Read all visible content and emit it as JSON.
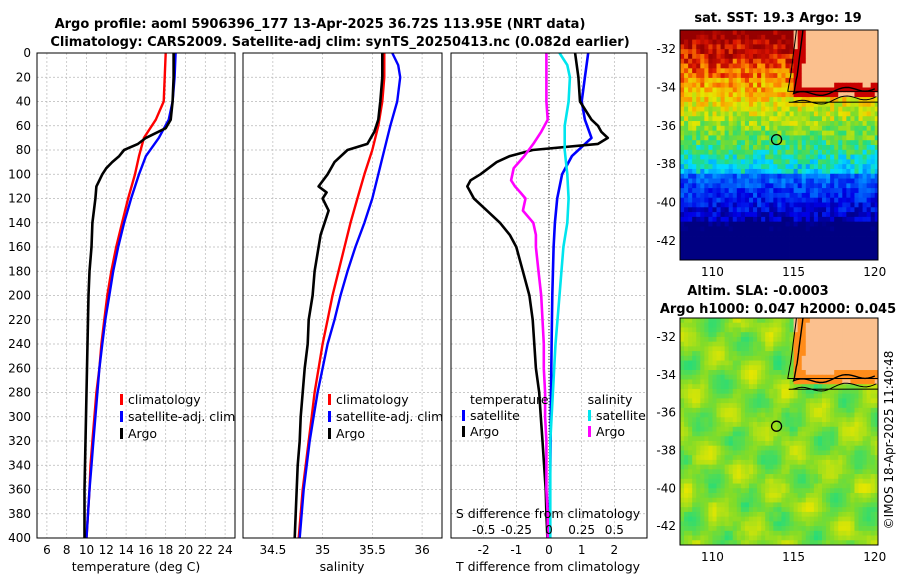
{
  "figure": {
    "title_line1": "Argo profile: aoml 5906396_177 13-Apr-2025 36.72S 113.95E (NRT data)",
    "title_line2": "Climatology: CARS2009. Satellite-adj clim: synTS_20250413.nc (0.082d earlier)",
    "credit": "©IMOS 18-Apr-2025 11:40:48"
  },
  "colors": {
    "climatology": "#ff0000",
    "satellite": "#0000ff",
    "argo": "#000000",
    "satellite_salinity": "#00e5ee",
    "argo_salinity": "#ff00ff"
  },
  "chart_data": [
    {
      "type": "line",
      "panel": "temperature",
      "xlabel": "temperature (deg C)",
      "ylabel": "",
      "xlim": [
        5,
        25
      ],
      "ylim": [
        400,
        0
      ],
      "xticks": [
        6,
        8,
        10,
        12,
        14,
        16,
        18,
        20,
        22,
        24
      ],
      "yticks": [
        0,
        20,
        40,
        60,
        80,
        100,
        120,
        140,
        160,
        180,
        200,
        220,
        240,
        260,
        280,
        300,
        320,
        340,
        360,
        380,
        400
      ],
      "grid": true,
      "legend": [
        "climatology",
        "satellite-adj. clim",
        "Argo"
      ],
      "legend_position": "lower-right",
      "series": [
        {
          "name": "climatology",
          "color": "#ff0000",
          "depth": [
            0,
            20,
            40,
            55,
            70,
            85,
            100,
            120,
            140,
            160,
            180,
            200,
            220,
            240,
            260,
            280,
            300,
            320,
            340,
            360,
            380,
            400
          ],
          "values": [
            18.0,
            17.9,
            17.8,
            17.0,
            15.8,
            15.3,
            14.9,
            14.2,
            13.6,
            13.0,
            12.5,
            12.1,
            11.8,
            11.5,
            11.3,
            11.0,
            10.8,
            10.6,
            10.4,
            10.3,
            10.15,
            10.0
          ]
        },
        {
          "name": "satellite-adj. clim",
          "color": "#0000ff",
          "depth": [
            0,
            20,
            40,
            55,
            70,
            85,
            100,
            120,
            140,
            160,
            180,
            200,
            220,
            240,
            260,
            280,
            300,
            320,
            340,
            360,
            380,
            400
          ],
          "values": [
            19.0,
            18.9,
            18.7,
            18.3,
            17.3,
            16.0,
            15.3,
            14.5,
            13.8,
            13.2,
            12.7,
            12.3,
            11.9,
            11.6,
            11.3,
            11.1,
            10.9,
            10.7,
            10.5,
            10.3,
            10.15,
            10.0
          ]
        },
        {
          "name": "Argo",
          "color": "#000000",
          "depth": [
            0,
            20,
            40,
            55,
            62,
            70,
            75,
            80,
            85,
            90,
            95,
            100,
            105,
            110,
            120,
            140,
            160,
            180,
            200,
            220,
            240,
            260,
            280,
            300,
            320,
            340,
            360,
            380,
            400
          ],
          "values": [
            18.8,
            18.8,
            18.7,
            18.5,
            18.0,
            16.0,
            15.2,
            13.8,
            13.3,
            12.6,
            12.0,
            11.6,
            11.3,
            11.0,
            10.9,
            10.6,
            10.5,
            10.3,
            10.2,
            10.15,
            10.1,
            10.05,
            10.0,
            9.95,
            9.9,
            9.85,
            9.8,
            9.8,
            9.8
          ]
        }
      ]
    },
    {
      "type": "line",
      "panel": "salinity",
      "xlabel": "salinity",
      "ylabel": "",
      "xlim": [
        34.2,
        36.2
      ],
      "ylim": [
        400,
        0
      ],
      "xticks": [
        34.5,
        35,
        35.5,
        36
      ],
      "xtick_labels": [
        "34.5",
        "35",
        "35.5",
        "36"
      ],
      "grid": true,
      "legend": [
        "climatology",
        "satellite-adj. clim",
        "Argo"
      ],
      "legend_position": "lower-right",
      "series": [
        {
          "name": "climatology",
          "color": "#ff0000",
          "depth": [
            0,
            20,
            40,
            60,
            80,
            100,
            120,
            140,
            160,
            180,
            200,
            220,
            240,
            260,
            280,
            300,
            320,
            340,
            360,
            380,
            400
          ],
          "values": [
            35.62,
            35.62,
            35.6,
            35.56,
            35.5,
            35.42,
            35.35,
            35.28,
            35.22,
            35.16,
            35.1,
            35.05,
            35.0,
            34.96,
            34.92,
            34.89,
            34.86,
            34.83,
            34.8,
            34.78,
            34.76
          ]
        },
        {
          "name": "satellite-adj. clim",
          "color": "#0000ff",
          "depth": [
            0,
            10,
            20,
            40,
            60,
            80,
            100,
            120,
            140,
            160,
            180,
            200,
            220,
            240,
            260,
            280,
            300,
            320,
            340,
            360,
            380,
            400
          ],
          "values": [
            35.7,
            35.76,
            35.78,
            35.75,
            35.68,
            35.62,
            35.56,
            35.5,
            35.42,
            35.33,
            35.25,
            35.18,
            35.12,
            35.05,
            35.0,
            34.95,
            34.91,
            34.87,
            34.84,
            34.81,
            34.79,
            34.77
          ]
        },
        {
          "name": "Argo",
          "color": "#000000",
          "depth": [
            0,
            20,
            40,
            55,
            65,
            75,
            80,
            90,
            100,
            110,
            115,
            120,
            130,
            140,
            150,
            160,
            180,
            200,
            220,
            240,
            260,
            280,
            300,
            320,
            340,
            360,
            380,
            400
          ],
          "values": [
            35.6,
            35.6,
            35.58,
            35.56,
            35.52,
            35.45,
            35.25,
            35.12,
            35.05,
            34.96,
            35.04,
            35.0,
            35.06,
            35.02,
            34.98,
            34.96,
            34.92,
            34.9,
            34.86,
            34.85,
            34.82,
            34.8,
            34.78,
            34.77,
            34.75,
            34.74,
            34.73,
            34.72
          ]
        }
      ]
    },
    {
      "type": "line",
      "panel": "difference",
      "xlabel": "T difference from climatology",
      "xlabel_top": "S difference from climatology",
      "ylabel": "",
      "xlim": [
        -3,
        3
      ],
      "ylim": [
        400,
        0
      ],
      "xticks": [
        -2,
        -1,
        0,
        1,
        2
      ],
      "xtick_labels": [
        "-2",
        "-1",
        "0",
        "1",
        "2"
      ],
      "xticks_top": [
        -0.5,
        -0.25,
        0,
        0.25,
        0.5
      ],
      "xtick_labels_top": [
        "-0.5",
        "-0.25",
        "0",
        "0.25",
        "0.5"
      ],
      "s_scale": 4,
      "grid": true,
      "legend_groups": [
        {
          "title": "temperature",
          "entries": [
            "satellite",
            "Argo"
          ]
        },
        {
          "title": "salinity",
          "entries": [
            "satellite",
            "Argo"
          ]
        }
      ],
      "legend_position": "lower-right",
      "series": [
        {
          "name": "temperature satellite",
          "color": "#0000ff",
          "depth": [
            0,
            20,
            40,
            55,
            70,
            85,
            100,
            120,
            140,
            160,
            200,
            240,
            280,
            320,
            360,
            400
          ],
          "values": [
            1.2,
            1.1,
            1.0,
            1.1,
            1.3,
            0.7,
            0.4,
            0.25,
            0.18,
            0.14,
            0.1,
            0.08,
            0.06,
            0.05,
            0.03,
            0.02
          ]
        },
        {
          "name": "temperature Argo",
          "color": "#000000",
          "depth": [
            0,
            20,
            40,
            55,
            60,
            65,
            70,
            75,
            80,
            85,
            90,
            100,
            105,
            110,
            120,
            130,
            140,
            150,
            160,
            180,
            200,
            220,
            240,
            260,
            280,
            300,
            320,
            340,
            360,
            380,
            400
          ],
          "values": [
            0.8,
            0.9,
            0.95,
            1.3,
            1.5,
            1.6,
            1.8,
            1.5,
            -0.5,
            -1.2,
            -1.6,
            -2.1,
            -2.4,
            -2.5,
            -2.3,
            -1.9,
            -1.5,
            -1.2,
            -1.0,
            -0.8,
            -0.6,
            -0.5,
            -0.45,
            -0.4,
            -0.3,
            -0.25,
            -0.2,
            -0.15,
            -0.1,
            -0.08,
            -0.05
          ]
        },
        {
          "name": "salinity satellite",
          "color": "#00e5ee",
          "depth": [
            0,
            10,
            20,
            40,
            60,
            80,
            100,
            120,
            140,
            160,
            200,
            240,
            280,
            320,
            360,
            400
          ],
          "values": [
            0.08,
            0.14,
            0.16,
            0.15,
            0.12,
            0.12,
            0.14,
            0.15,
            0.14,
            0.11,
            0.08,
            0.05,
            0.03,
            0.01,
            0.01,
            0.01
          ]
        },
        {
          "name": "salinity Argo",
          "color": "#ff00ff",
          "depth": [
            0,
            20,
            40,
            55,
            65,
            75,
            85,
            95,
            105,
            110,
            115,
            120,
            130,
            140,
            150,
            160,
            180,
            200,
            220,
            240,
            260,
            280,
            300,
            320,
            340,
            360,
            380,
            400
          ],
          "values": [
            -0.02,
            -0.02,
            -0.02,
            -0.01,
            -0.06,
            -0.12,
            -0.19,
            -0.27,
            -0.29,
            -0.26,
            -0.22,
            -0.18,
            -0.2,
            -0.12,
            -0.1,
            -0.1,
            -0.08,
            -0.06,
            -0.05,
            -0.04,
            -0.04,
            -0.03,
            -0.03,
            -0.02,
            -0.02,
            -0.02,
            -0.01,
            -0.01
          ]
        }
      ]
    },
    {
      "type": "heatmap",
      "panel": "sst-map",
      "title": "sat. SST: 19.3 Argo: 19",
      "xlim": [
        108,
        120.2
      ],
      "ylim": [
        -43,
        -31
      ],
      "xticks": [
        110,
        115,
        120
      ],
      "yticks": [
        -32,
        -34,
        -36,
        -38,
        -40,
        -42
      ],
      "marker": {
        "lon": 113.95,
        "lat": -36.72
      }
    },
    {
      "type": "heatmap",
      "panel": "sla-map",
      "title": "Altim. SLA: -0.0003",
      "subtitle": "Argo h1000: 0.047 h2000: 0.045",
      "xlim": [
        108,
        120.2
      ],
      "ylim": [
        -43,
        -31
      ],
      "xticks": [
        110,
        115,
        120
      ],
      "yticks": [
        -32,
        -34,
        -36,
        -38,
        -40,
        -42
      ],
      "marker": {
        "lon": 113.95,
        "lat": -36.72
      }
    }
  ]
}
